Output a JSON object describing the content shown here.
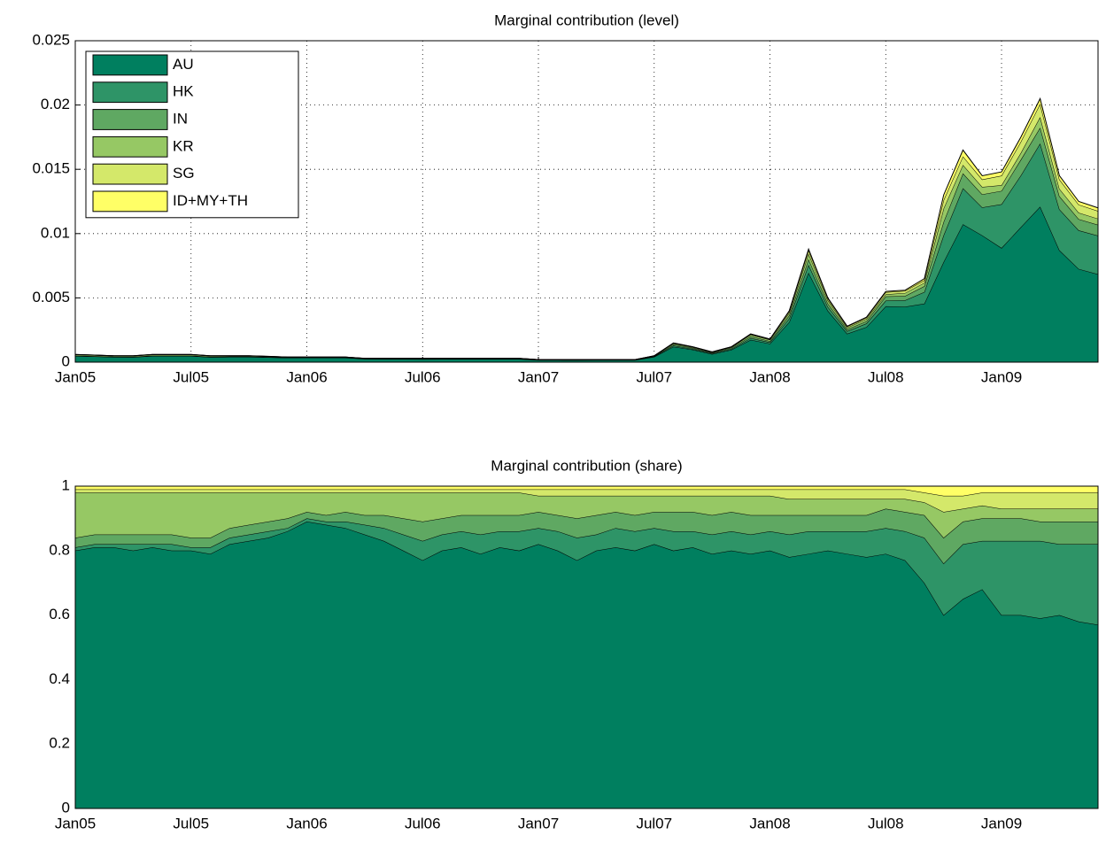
{
  "chart_data": [
    {
      "type": "area",
      "stacked": true,
      "title": "Marginal contribution (level)",
      "grid": true,
      "legend": "upper left",
      "x": [
        "2005-01",
        "2005-02",
        "2005-03",
        "2005-04",
        "2005-05",
        "2005-06",
        "2005-07",
        "2005-08",
        "2005-09",
        "2005-10",
        "2005-11",
        "2005-12",
        "2006-01",
        "2006-02",
        "2006-03",
        "2006-04",
        "2006-05",
        "2006-06",
        "2006-07",
        "2006-08",
        "2006-09",
        "2006-10",
        "2006-11",
        "2006-12",
        "2007-01",
        "2007-02",
        "2007-03",
        "2007-04",
        "2007-05",
        "2007-06",
        "2007-07",
        "2007-08",
        "2007-09",
        "2007-10",
        "2007-11",
        "2007-12",
        "2008-01",
        "2008-02",
        "2008-03",
        "2008-04",
        "2008-05",
        "2008-06",
        "2008-07",
        "2008-08",
        "2008-09",
        "2008-10",
        "2008-11",
        "2008-12",
        "2009-01",
        "2009-02",
        "2009-03",
        "2009-04",
        "2009-05",
        "2009-06"
      ],
      "xlim": [
        "2005-01",
        "2009-06"
      ],
      "xticks": [
        {
          "value": "2005-01",
          "label": "Jan05"
        },
        {
          "value": "2005-07",
          "label": "Jul05"
        },
        {
          "value": "2006-01",
          "label": "Jan06"
        },
        {
          "value": "2006-07",
          "label": "Jul06"
        },
        {
          "value": "2007-01",
          "label": "Jan07"
        },
        {
          "value": "2007-07",
          "label": "Jul07"
        },
        {
          "value": "2008-01",
          "label": "Jan08"
        },
        {
          "value": "2008-07",
          "label": "Jul08"
        },
        {
          "value": "2009-01",
          "label": "Jan09"
        }
      ],
      "ylim": [
        0,
        0.025
      ],
      "yticks": [
        0,
        0.005,
        0.01,
        0.015,
        0.02,
        0.025
      ],
      "series": [
        {
          "name": "AU",
          "color": "#007f5f",
          "values": [
            0.00048,
            0.000446,
            0.000405,
            0.0004,
            0.000486,
            0.00048,
            0.00048,
            0.000395,
            0.00041,
            0.000415,
            0.000378,
            0.000344,
            0.000356,
            0.000352,
            0.000348,
            0.000255,
            0.000249,
            0.00024,
            0.000231,
            0.00024,
            0.000243,
            0.000237,
            0.000243,
            0.00024,
            0.000164,
            0.00016,
            0.000154,
            0.00016,
            0.000162,
            0.00016,
            0.00041,
            0.0012,
            0.000972,
            0.000632,
            0.00096,
            0.001738,
            0.00144,
            0.00312,
            0.006952,
            0.004,
            0.002212,
            0.00273,
            0.004345,
            0.004312,
            0.00455,
            0.0078,
            0.010725,
            0.00986,
            0.00888,
            0.0105,
            0.012095,
            0.0087,
            0.00725,
            0.00684
          ]
        },
        {
          "name": "HK",
          "color": "#2e9467",
          "values": [
            6e-06,
            6e-06,
            5e-06,
            1e-05,
            6e-06,
            1.2e-05,
            6e-06,
            1e-05,
            1e-05,
            1e-05,
            9e-06,
            4e-06,
            4e-06,
            4e-06,
            8e-06,
            9e-06,
            1.2e-05,
            1.5e-05,
            1.8e-05,
            1.5e-05,
            1.5e-05,
            1.8e-05,
            1.5e-05,
            1.8e-05,
            1e-05,
            1.2e-05,
            1.4e-05,
            1e-05,
            1.2e-05,
            1.2e-05,
            2.5e-05,
            9e-05,
            6e-05,
            4.8e-05,
            7.2e-05,
            0.000132,
            0.000108,
            0.00028,
            0.000616,
            0.0003,
            0.000196,
            0.00028,
            0.00044,
            0.000504,
            0.00091,
            0.00208,
            0.002805,
            0.002175,
            0.003404,
            0.004025,
            0.00492,
            0.00319,
            0.003,
            0.003
          ]
        },
        {
          "name": "IN",
          "color": "#5fa862",
          "values": [
            1.8e-05,
            1.7e-05,
            1.5e-05,
            1.5e-05,
            1.8e-05,
            1.8e-05,
            1.8e-05,
            1.5e-05,
            1.5e-05,
            1.5e-05,
            1.4e-05,
            1.2e-05,
            8e-06,
            8e-06,
            1.2e-05,
            9e-06,
            1.2e-05,
            1.5e-05,
            1.8e-05,
            1.5e-05,
            1.5e-05,
            1.8e-05,
            1.5e-05,
            1.5e-05,
            1e-05,
            1e-05,
            1.2e-05,
            1.2e-05,
            1e-05,
            1e-05,
            2.5e-05,
            9e-05,
            7.2e-05,
            4.8e-05,
            7.2e-05,
            0.000132,
            9e-05,
            0.00024,
            0.00044,
            0.00025,
            0.00014,
            0.000175,
            0.00033,
            0.000336,
            0.000455,
            0.00104,
            0.001155,
            0.001015,
            0.001036,
            0.001225,
            0.00123,
            0.001015,
            0.000875,
            0.00084
          ]
        },
        {
          "name": "KR",
          "color": "#96c864",
          "values": [
            8.4e-05,
            7.2e-05,
            6.5e-05,
            6.5e-05,
            7.8e-05,
            7.8e-05,
            8.4e-05,
            7e-05,
            5.5e-05,
            5e-05,
            4.1e-05,
            3.2e-05,
            2.4e-05,
            2.8e-05,
            2.4e-05,
            2.1e-05,
            2.1e-05,
            2.4e-05,
            2.7e-05,
            2.4e-05,
            2.1e-05,
            2.1e-05,
            2.1e-05,
            2.1e-05,
            1e-05,
            1.2e-05,
            1.4e-05,
            1.2e-05,
            1e-05,
            1.2e-05,
            2.5e-05,
            7.5e-05,
            6e-05,
            4.8e-05,
            6e-05,
            0.000132,
            0.000108,
            0.0002,
            0.00044,
            0.00025,
            0.00014,
            0.000175,
            0.000165,
            0.000224,
            0.00026,
            0.00104,
            0.00066,
            0.00058,
            0.000444,
            0.000525,
            0.00082,
            0.00058,
            0.0005,
            0.00048
          ]
        },
        {
          "name": "SG",
          "color": "#d4e86a",
          "values": [
            6e-06,
            6e-06,
            5e-06,
            5e-06,
            6e-06,
            6e-06,
            6e-06,
            5e-06,
            5e-06,
            5e-06,
            5e-06,
            4e-06,
            4e-06,
            4e-06,
            4e-06,
            3e-06,
            3e-06,
            3e-06,
            3e-06,
            3e-06,
            3e-06,
            3e-06,
            3e-06,
            3e-06,
            4e-06,
            4e-06,
            4e-06,
            4e-06,
            4e-06,
            4e-06,
            1e-05,
            3e-05,
            2.4e-05,
            1.6e-05,
            2.4e-05,
            4.4e-05,
            3.6e-05,
            0.00012,
            0.000264,
            0.00015,
            8.4e-05,
            0.000105,
            0.000165,
            0.000168,
            0.000195,
            0.00065,
            0.00066,
            0.00058,
            0.00074,
            0.000875,
            0.001025,
            0.000725,
            0.000625,
            0.0006
          ]
        },
        {
          "name": "ID+MY+TH",
          "color": "#ffff66",
          "values": [
            6e-06,
            6e-06,
            5e-06,
            5e-06,
            6e-06,
            6e-06,
            6e-06,
            5e-06,
            5e-06,
            5e-06,
            5e-06,
            4e-06,
            4e-06,
            4e-06,
            4e-06,
            3e-06,
            3e-06,
            3e-06,
            3e-06,
            3e-06,
            3e-06,
            3e-06,
            3e-06,
            3e-06,
            2e-06,
            2e-06,
            2e-06,
            2e-06,
            2e-06,
            2e-06,
            5e-06,
            1.5e-05,
            1.2e-05,
            8e-06,
            1.2e-05,
            2.2e-05,
            1.8e-05,
            4e-05,
            8.8e-05,
            5e-05,
            2.8e-05,
            3.5e-05,
            5.5e-05,
            5.6e-05,
            0.00013,
            0.00039,
            0.000495,
            0.00029,
            0.000296,
            0.00035,
            0.00041,
            0.00029,
            0.00025,
            0.00024
          ]
        }
      ]
    },
    {
      "type": "area",
      "stacked": true,
      "title": "Marginal contribution (share)",
      "grid": true,
      "x": [
        "2005-01",
        "2005-02",
        "2005-03",
        "2005-04",
        "2005-05",
        "2005-06",
        "2005-07",
        "2005-08",
        "2005-09",
        "2005-10",
        "2005-11",
        "2005-12",
        "2006-01",
        "2006-02",
        "2006-03",
        "2006-04",
        "2006-05",
        "2006-06",
        "2006-07",
        "2006-08",
        "2006-09",
        "2006-10",
        "2006-11",
        "2006-12",
        "2007-01",
        "2007-02",
        "2007-03",
        "2007-04",
        "2007-05",
        "2007-06",
        "2007-07",
        "2007-08",
        "2007-09",
        "2007-10",
        "2007-11",
        "2007-12",
        "2008-01",
        "2008-02",
        "2008-03",
        "2008-04",
        "2008-05",
        "2008-06",
        "2008-07",
        "2008-08",
        "2008-09",
        "2008-10",
        "2008-11",
        "2008-12",
        "2009-01",
        "2009-02",
        "2009-03",
        "2009-04",
        "2009-05",
        "2009-06"
      ],
      "xlim": [
        "2005-01",
        "2009-06"
      ],
      "xticks": [
        {
          "value": "2005-01",
          "label": "Jan05"
        },
        {
          "value": "2005-07",
          "label": "Jul05"
        },
        {
          "value": "2006-01",
          "label": "Jan06"
        },
        {
          "value": "2006-07",
          "label": "Jul06"
        },
        {
          "value": "2007-01",
          "label": "Jan07"
        },
        {
          "value": "2007-07",
          "label": "Jul07"
        },
        {
          "value": "2008-01",
          "label": "Jan08"
        },
        {
          "value": "2008-07",
          "label": "Jul08"
        },
        {
          "value": "2009-01",
          "label": "Jan09"
        }
      ],
      "ylim": [
        0,
        1
      ],
      "yticks": [
        0,
        0.2,
        0.4,
        0.6,
        0.8,
        1
      ],
      "series": [
        {
          "color": "#007f5f",
          "values": [
            0.8,
            0.81,
            0.81,
            0.8,
            0.81,
            0.8,
            0.8,
            0.79,
            0.82,
            0.83,
            0.84,
            0.86,
            0.89,
            0.88,
            0.87,
            0.85,
            0.83,
            0.8,
            0.77,
            0.8,
            0.81,
            0.79,
            0.81,
            0.8,
            0.82,
            0.8,
            0.77,
            0.8,
            0.81,
            0.8,
            0.82,
            0.8,
            0.81,
            0.79,
            0.8,
            0.79,
            0.8,
            0.78,
            0.79,
            0.8,
            0.79,
            0.78,
            0.79,
            0.77,
            0.7,
            0.6,
            0.65,
            0.68,
            0.6,
            0.6,
            0.59,
            0.6,
            0.58,
            0.57
          ]
        },
        {
          "color": "#2e9467",
          "values": [
            0.01,
            0.01,
            0.01,
            0.02,
            0.01,
            0.02,
            0.01,
            0.02,
            0.02,
            0.02,
            0.02,
            0.01,
            0.01,
            0.01,
            0.02,
            0.03,
            0.04,
            0.05,
            0.06,
            0.05,
            0.05,
            0.06,
            0.05,
            0.06,
            0.05,
            0.06,
            0.07,
            0.05,
            0.06,
            0.06,
            0.05,
            0.06,
            0.05,
            0.06,
            0.06,
            0.06,
            0.06,
            0.07,
            0.07,
            0.06,
            0.07,
            0.08,
            0.08,
            0.09,
            0.14,
            0.16,
            0.17,
            0.15,
            0.23,
            0.23,
            0.24,
            0.22,
            0.24,
            0.25
          ]
        },
        {
          "color": "#5fa862",
          "values": [
            0.03,
            0.03,
            0.03,
            0.03,
            0.03,
            0.03,
            0.03,
            0.03,
            0.03,
            0.03,
            0.03,
            0.03,
            0.02,
            0.02,
            0.03,
            0.03,
            0.04,
            0.05,
            0.06,
            0.05,
            0.05,
            0.06,
            0.05,
            0.05,
            0.05,
            0.05,
            0.06,
            0.06,
            0.05,
            0.05,
            0.05,
            0.06,
            0.06,
            0.06,
            0.06,
            0.06,
            0.05,
            0.06,
            0.05,
            0.05,
            0.05,
            0.05,
            0.06,
            0.06,
            0.07,
            0.08,
            0.07,
            0.07,
            0.07,
            0.07,
            0.06,
            0.07,
            0.07,
            0.07
          ]
        },
        {
          "color": "#96c864",
          "values": [
            0.14,
            0.13,
            0.13,
            0.13,
            0.13,
            0.13,
            0.14,
            0.14,
            0.11,
            0.1,
            0.09,
            0.08,
            0.06,
            0.07,
            0.06,
            0.07,
            0.07,
            0.08,
            0.09,
            0.08,
            0.07,
            0.07,
            0.07,
            0.07,
            0.05,
            0.06,
            0.07,
            0.06,
            0.05,
            0.06,
            0.05,
            0.05,
            0.05,
            0.06,
            0.05,
            0.06,
            0.06,
            0.05,
            0.05,
            0.05,
            0.05,
            0.05,
            0.03,
            0.04,
            0.04,
            0.08,
            0.04,
            0.04,
            0.03,
            0.03,
            0.04,
            0.04,
            0.04,
            0.04
          ]
        },
        {
          "color": "#d4e86a",
          "values": [
            0.01,
            0.01,
            0.01,
            0.01,
            0.01,
            0.01,
            0.01,
            0.01,
            0.01,
            0.01,
            0.01,
            0.01,
            0.01,
            0.01,
            0.01,
            0.01,
            0.01,
            0.01,
            0.01,
            0.01,
            0.01,
            0.01,
            0.01,
            0.01,
            0.02,
            0.02,
            0.02,
            0.02,
            0.02,
            0.02,
            0.02,
            0.02,
            0.02,
            0.02,
            0.02,
            0.02,
            0.02,
            0.03,
            0.03,
            0.03,
            0.03,
            0.03,
            0.03,
            0.03,
            0.03,
            0.05,
            0.04,
            0.04,
            0.05,
            0.05,
            0.05,
            0.05,
            0.05,
            0.05
          ]
        },
        {
          "color": "#ffff66",
          "values": [
            0.01,
            0.01,
            0.01,
            0.01,
            0.01,
            0.01,
            0.01,
            0.01,
            0.01,
            0.01,
            0.01,
            0.01,
            0.01,
            0.01,
            0.01,
            0.01,
            0.01,
            0.01,
            0.01,
            0.01,
            0.01,
            0.01,
            0.01,
            0.01,
            0.01,
            0.01,
            0.01,
            0.01,
            0.01,
            0.01,
            0.01,
            0.01,
            0.01,
            0.01,
            0.01,
            0.01,
            0.01,
            0.01,
            0.01,
            0.01,
            0.01,
            0.01,
            0.01,
            0.01,
            0.02,
            0.03,
            0.03,
            0.02,
            0.02,
            0.02,
            0.02,
            0.02,
            0.02,
            0.02
          ]
        }
      ]
    }
  ]
}
